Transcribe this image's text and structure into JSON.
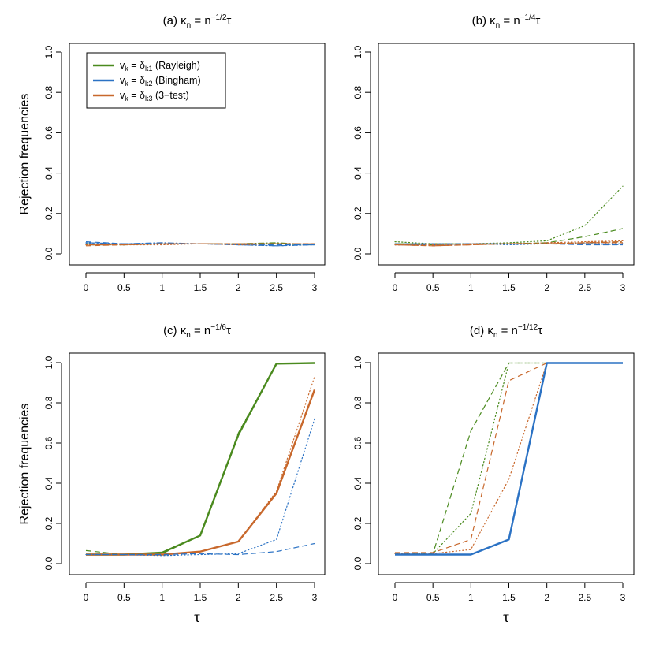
{
  "chart_data": [
    {
      "type": "line",
      "title": "(a)  κₙ = n⁻¹ᐟ²τ",
      "title_parts": {
        "prefix": "(a)  κ",
        "sub": "n",
        "mid": " = n",
        "sup": "−1/2",
        "suffix": "τ"
      },
      "xlabel": "",
      "ylabel": "Rejection frequencies",
      "x": [
        0,
        0.5,
        1,
        1.5,
        2,
        2.5,
        3
      ],
      "xticks": [
        "0",
        "0.5",
        "1",
        "1.5",
        "2",
        "2.5",
        "3"
      ],
      "yticks": [
        "0.0",
        "0.2",
        "0.4",
        "0.6",
        "0.8",
        "1.0"
      ],
      "xlim": [
        0,
        3
      ],
      "ylim": [
        0,
        1
      ],
      "legend": {
        "placement": "top-left",
        "entries": [
          {
            "color": "#4a8a1e",
            "parts": {
              "a": "v",
              "asub": "k",
              "b": " = δ",
              "bsub": "k1",
              "c": " (Rayleigh)"
            }
          },
          {
            "color": "#2b72c4",
            "parts": {
              "a": "v",
              "asub": "k",
              "b": " = δ",
              "bsub": "k2",
              "c": " (Bingham)"
            }
          },
          {
            "color": "#c8682c",
            "parts": {
              "a": "v",
              "asub": "k",
              "b": " = δ",
              "bsub": "k3",
              "c": " (3−test)"
            }
          }
        ]
      },
      "series": [
        {
          "color": "#4a8a1e",
          "style": "dashed",
          "width": 1.2,
          "values": [
            0.05,
            0.045,
            0.05,
            0.05,
            0.05,
            0.05,
            0.05
          ]
        },
        {
          "color": "#4a8a1e",
          "style": "dotted",
          "width": 1.2,
          "values": [
            0.045,
            0.045,
            0.05,
            0.05,
            0.05,
            0.05,
            0.045
          ]
        },
        {
          "color": "#4a8a1e",
          "style": "dotdash",
          "width": 1.2,
          "values": [
            0.045,
            0.045,
            0.05,
            0.05,
            0.05,
            0.055,
            0.045
          ]
        },
        {
          "color": "#2b72c4",
          "style": "dashed",
          "width": 1.2,
          "values": [
            0.06,
            0.05,
            0.05,
            0.05,
            0.045,
            0.045,
            0.045
          ]
        },
        {
          "color": "#2b72c4",
          "style": "dotted",
          "width": 1.2,
          "values": [
            0.05,
            0.05,
            0.05,
            0.05,
            0.045,
            0.04,
            0.045
          ]
        },
        {
          "color": "#2b72c4",
          "style": "dotdash",
          "width": 1.2,
          "values": [
            0.055,
            0.05,
            0.055,
            0.05,
            0.045,
            0.04,
            0.045
          ]
        },
        {
          "color": "#c8682c",
          "style": "dashed",
          "width": 1.2,
          "values": [
            0.04,
            0.045,
            0.05,
            0.05,
            0.05,
            0.05,
            0.05
          ]
        },
        {
          "color": "#c8682c",
          "style": "dotted",
          "width": 1.2,
          "values": [
            0.045,
            0.045,
            0.045,
            0.05,
            0.045,
            0.05,
            0.05
          ]
        },
        {
          "color": "#c8682c",
          "style": "dotdash",
          "width": 1.2,
          "values": [
            0.045,
            0.045,
            0.05,
            0.05,
            0.05,
            0.05,
            0.05
          ]
        }
      ]
    },
    {
      "type": "line",
      "title": "(b)  κₙ = n⁻¹ᐟ⁴τ",
      "title_parts": {
        "prefix": "(b)  κ",
        "sub": "n",
        "mid": " = n",
        "sup": "−1/4",
        "suffix": "τ"
      },
      "xlabel": "",
      "ylabel": "",
      "x": [
        0,
        0.5,
        1,
        1.5,
        2,
        2.5,
        3
      ],
      "xticks": [
        "0",
        "0.5",
        "1",
        "1.5",
        "2",
        "2.5",
        "3"
      ],
      "yticks": [
        "0.0",
        "0.2",
        "0.4",
        "0.6",
        "0.8",
        "1.0"
      ],
      "xlim": [
        0,
        3
      ],
      "ylim": [
        0,
        1
      ],
      "series": [
        {
          "color": "#4a8a1e",
          "style": "dashed",
          "width": 1.2,
          "values": [
            0.05,
            0.045,
            0.05,
            0.05,
            0.055,
            0.085,
            0.125
          ]
        },
        {
          "color": "#4a8a1e",
          "style": "dotted",
          "width": 1.2,
          "values": [
            0.06,
            0.05,
            0.05,
            0.055,
            0.065,
            0.14,
            0.335
          ]
        },
        {
          "color": "#4a8a1e",
          "style": "dotdash",
          "width": 1.2,
          "values": [
            0.05,
            0.05,
            0.05,
            0.05,
            0.05,
            0.055,
            0.06
          ]
        },
        {
          "color": "#2b72c4",
          "style": "dashed",
          "width": 1.2,
          "values": [
            0.05,
            0.05,
            0.05,
            0.05,
            0.05,
            0.045,
            0.045
          ]
        },
        {
          "color": "#2b72c4",
          "style": "dotted",
          "width": 1.2,
          "values": [
            0.045,
            0.045,
            0.05,
            0.045,
            0.05,
            0.05,
            0.05
          ]
        },
        {
          "color": "#2b72c4",
          "style": "dotdash",
          "width": 1.2,
          "values": [
            0.045,
            0.045,
            0.05,
            0.05,
            0.05,
            0.05,
            0.045
          ]
        },
        {
          "color": "#c8682c",
          "style": "dashed",
          "width": 1.2,
          "values": [
            0.045,
            0.04,
            0.045,
            0.05,
            0.05,
            0.055,
            0.055
          ]
        },
        {
          "color": "#c8682c",
          "style": "dotted",
          "width": 1.2,
          "values": [
            0.045,
            0.045,
            0.05,
            0.05,
            0.055,
            0.06,
            0.065
          ]
        },
        {
          "color": "#c8682c",
          "style": "dotdash",
          "width": 1.2,
          "values": [
            0.045,
            0.04,
            0.045,
            0.05,
            0.05,
            0.055,
            0.06
          ]
        }
      ]
    },
    {
      "type": "line",
      "title": "(c)  κₙ = n⁻¹ᐟ⁶τ",
      "title_parts": {
        "prefix": "(c)  κ",
        "sub": "n",
        "mid": " = n",
        "sup": "−1/6",
        "suffix": "τ"
      },
      "xlabel": "τ",
      "ylabel": "Rejection frequencies",
      "x": [
        0,
        0.5,
        1,
        1.5,
        2,
        2.5,
        3
      ],
      "xticks": [
        "0",
        "0.5",
        "1",
        "1.5",
        "2",
        "2.5",
        "3"
      ],
      "yticks": [
        "0.0",
        "0.2",
        "0.4",
        "0.6",
        "0.8",
        "1.0"
      ],
      "xlim": [
        0,
        3
      ],
      "ylim": [
        0,
        1
      ],
      "series": [
        {
          "color": "#4a8a1e",
          "style": "solid",
          "width": 2.4,
          "values": [
            0.045,
            0.045,
            0.055,
            0.14,
            0.64,
            0.995,
            0.998
          ]
        },
        {
          "color": "#4a8a1e",
          "style": "dashed",
          "width": 1.2,
          "values": [
            0.065,
            0.045,
            0.05,
            0.14,
            0.65,
            0.995,
            0.998
          ]
        },
        {
          "color": "#c8682c",
          "style": "solid",
          "width": 2.4,
          "values": [
            0.045,
            0.045,
            0.045,
            0.06,
            0.11,
            0.35,
            0.865
          ]
        },
        {
          "color": "#c8682c",
          "style": "dotted",
          "width": 1.2,
          "values": [
            0.045,
            0.045,
            0.045,
            0.06,
            0.11,
            0.36,
            0.93
          ]
        },
        {
          "color": "#2b72c4",
          "style": "dotted",
          "width": 1.2,
          "values": [
            0.045,
            0.045,
            0.04,
            0.045,
            0.05,
            0.12,
            0.72
          ]
        },
        {
          "color": "#2b72c4",
          "style": "dashed",
          "width": 1.2,
          "values": [
            0.045,
            0.045,
            0.045,
            0.05,
            0.045,
            0.06,
            0.1
          ]
        }
      ]
    },
    {
      "type": "line",
      "title": "(d)  κₙ = n⁻¹ᐟ¹²τ",
      "title_parts": {
        "prefix": "(d)  κ",
        "sub": "n",
        "mid": " = n",
        "sup": "−1/12",
        "suffix": "τ"
      },
      "xlabel": "τ",
      "ylabel": "",
      "x": [
        0,
        0.5,
        1,
        1.5,
        2,
        2.5,
        3
      ],
      "xticks": [
        "0",
        "0.5",
        "1",
        "1.5",
        "2",
        "2.5",
        "3"
      ],
      "yticks": [
        "0.0",
        "0.2",
        "0.4",
        "0.6",
        "0.8",
        "1.0"
      ],
      "xlim": [
        0,
        3
      ],
      "ylim": [
        0,
        1
      ],
      "series": [
        {
          "color": "#4a8a1e",
          "style": "dashed",
          "width": 1.2,
          "values": [
            0.05,
            0.05,
            0.66,
            0.998,
            0.998,
            0.998,
            0.998
          ]
        },
        {
          "color": "#4a8a1e",
          "style": "dotted",
          "width": 1.2,
          "values": [
            0.05,
            0.05,
            0.25,
            0.998,
            0.998,
            0.998,
            0.998
          ]
        },
        {
          "color": "#c8682c",
          "style": "dashed",
          "width": 1.2,
          "values": [
            0.055,
            0.055,
            0.12,
            0.91,
            0.998,
            0.998,
            0.998
          ]
        },
        {
          "color": "#c8682c",
          "style": "dotted",
          "width": 1.2,
          "values": [
            0.05,
            0.05,
            0.07,
            0.42,
            0.998,
            0.998,
            0.998
          ]
        },
        {
          "color": "#2b72c4",
          "style": "solid",
          "width": 2.4,
          "values": [
            0.045,
            0.045,
            0.045,
            0.12,
            0.998,
            0.998,
            0.998
          ]
        }
      ]
    }
  ]
}
